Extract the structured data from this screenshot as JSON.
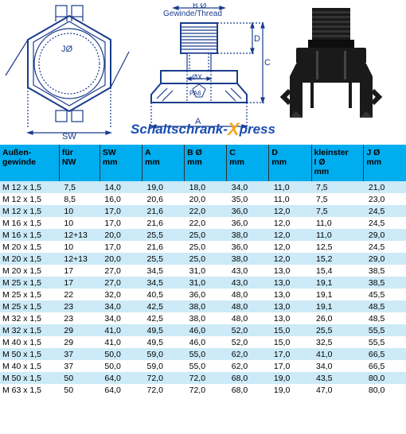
{
  "logo": {
    "part1": "Schaltschrank-",
    "x": "X",
    "part2": "press"
  },
  "diagram": {
    "thread_label": "Gewinde/Thread",
    "material_label": "PA6",
    "dims": {
      "jo": "JØ",
      "sw": "SW",
      "bo": "B Ø",
      "a": "A",
      "c": "C",
      "d": "D",
      "phix": "ØX"
    }
  },
  "table": {
    "headers": [
      {
        "l1": "Außen-",
        "l2": "gewinde",
        "l3": ""
      },
      {
        "l1": "für",
        "l2": "NW",
        "l3": ""
      },
      {
        "l1": "SW",
        "l2": "mm",
        "l3": ""
      },
      {
        "l1": "A",
        "l2": "mm",
        "l3": ""
      },
      {
        "l1": "B Ø",
        "l2": "mm",
        "l3": ""
      },
      {
        "l1": "C",
        "l2": "mm",
        "l3": ""
      },
      {
        "l1": "D",
        "l2": "mm",
        "l3": ""
      },
      {
        "l1": "kleinster",
        "l2": "I Ø",
        "l3": "mm"
      },
      {
        "l1": "J Ø",
        "l2": "mm",
        "l3": ""
      }
    ],
    "rows": [
      [
        "M 12 x 1,5",
        "7,5",
        "14,0",
        "19,0",
        "18,0",
        "34,0",
        "11,0",
        "7,5",
        "21,0"
      ],
      [
        "M 12 x 1,5",
        "8,5",
        "16,0",
        "20,6",
        "20,0",
        "35,0",
        "11,0",
        "7,5",
        "23,0"
      ],
      [
        "M 12 x 1,5",
        "10",
        "17,0",
        "21,6",
        "22,0",
        "36,0",
        "12,0",
        "7,5",
        "24,5"
      ],
      [
        "M 16 x 1,5",
        "10",
        "17,0",
        "21,6",
        "22,0",
        "36,0",
        "12,0",
        "11,0",
        "24,5"
      ],
      [
        "M 16 x 1,5",
        "12+13",
        "20,0",
        "25,5",
        "25,0",
        "38,0",
        "12,0",
        "11,0",
        "29,0"
      ],
      [
        "M 20 x 1,5",
        "10",
        "17,0",
        "21,6",
        "25,0",
        "36,0",
        "12,0",
        "12,5",
        "24,5"
      ],
      [
        "M 20 x 1,5",
        "12+13",
        "20,0",
        "25,5",
        "25,0",
        "38,0",
        "12,0",
        "15,2",
        "29,0"
      ],
      [
        "M 20 x 1,5",
        "17",
        "27,0",
        "34,5",
        "31,0",
        "43,0",
        "13,0",
        "15,4",
        "38,5"
      ],
      [
        "M 25 x 1,5",
        "17",
        "27,0",
        "34,5",
        "31,0",
        "43,0",
        "13,0",
        "19,1",
        "38,5"
      ],
      [
        "M 25 x 1,5",
        "22",
        "32,0",
        "40,5",
        "36,0",
        "48,0",
        "13,0",
        "19,1",
        "45,5"
      ],
      [
        "M 25 x 1,5",
        "23",
        "34,0",
        "42,5",
        "38,0",
        "48,0",
        "13,0",
        "19,1",
        "48,5"
      ],
      [
        "M 32 x 1,5",
        "23",
        "34,0",
        "42,5",
        "38,0",
        "48,0",
        "13,0",
        "26,0",
        "48,5"
      ],
      [
        "M 32 x 1,5",
        "29",
        "41,0",
        "49,5",
        "46,0",
        "52,0",
        "15,0",
        "25,5",
        "55,5"
      ],
      [
        "M 40 x 1,5",
        "29",
        "41,0",
        "49,5",
        "46,0",
        "52,0",
        "15,0",
        "32,5",
        "55,5"
      ],
      [
        "M 50 x 1,5",
        "37",
        "50,0",
        "59,0",
        "55,0",
        "62,0",
        "17,0",
        "41,0",
        "66,5"
      ],
      [
        "M 40 x 1,5",
        "37",
        "50,0",
        "59,0",
        "55,0",
        "62,0",
        "17,0",
        "34,0",
        "66,5"
      ],
      [
        "M 50 x 1,5",
        "50",
        "64,0",
        "72,0",
        "72,0",
        "68,0",
        "19,0",
        "43,5",
        "80,0"
      ],
      [
        "M 63 x 1,5",
        "50",
        "64,0",
        "72,0",
        "72,0",
        "68,0",
        "19,0",
        "47,0",
        "80,0"
      ]
    ]
  },
  "style": {
    "header_bg": "#00adef",
    "row_grey": "#cceaf7",
    "row_white": "#ffffff",
    "logo_blue": "#1a4db3",
    "logo_orange": "#f5a623",
    "diagram_stroke": "#1a3c8c"
  }
}
